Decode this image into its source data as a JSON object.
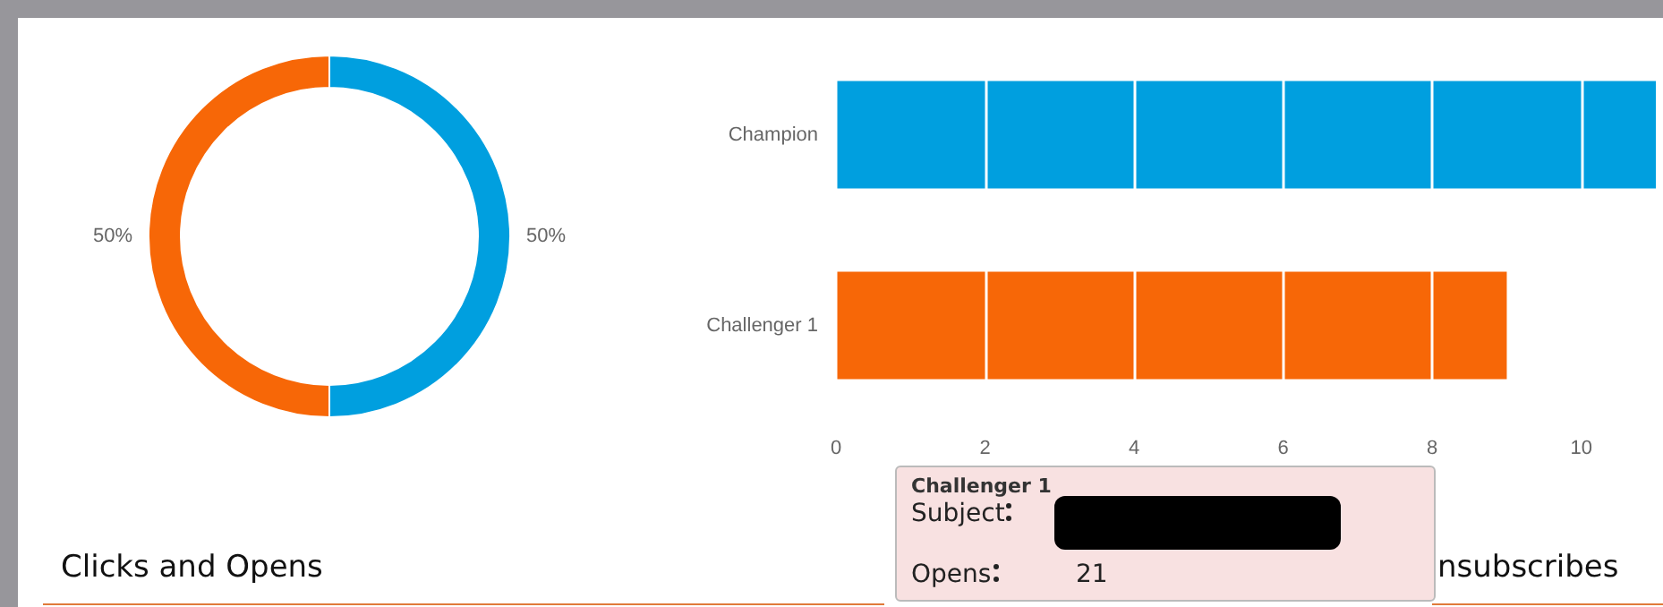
{
  "chart_data": [
    {
      "type": "donut",
      "categories": [
        null,
        null
      ],
      "values": [
        50,
        50
      ],
      "colors": [
        "#009fdf",
        "#f76707"
      ],
      "value_labels": [
        "50%",
        "50%"
      ],
      "annotations": [
        "Clicks and Opens"
      ]
    },
    {
      "type": "bar",
      "orientation": "horizontal",
      "categories": [
        "Champion",
        "Challenger 1"
      ],
      "values": [
        11,
        9
      ],
      "colors": [
        "#009fdf",
        "#f76707"
      ],
      "xlim": [
        0,
        11
      ],
      "xticks": [
        0,
        2,
        4,
        6,
        8,
        10
      ],
      "grid": "x",
      "annotations": [
        "nsubscribes"
      ]
    },
    {
      "type": "other",
      "title": "Challenger 1",
      "categories": [
        "Subject",
        "Opens"
      ],
      "values": [
        null,
        21
      ],
      "data_labels": true
    }
  ]
}
